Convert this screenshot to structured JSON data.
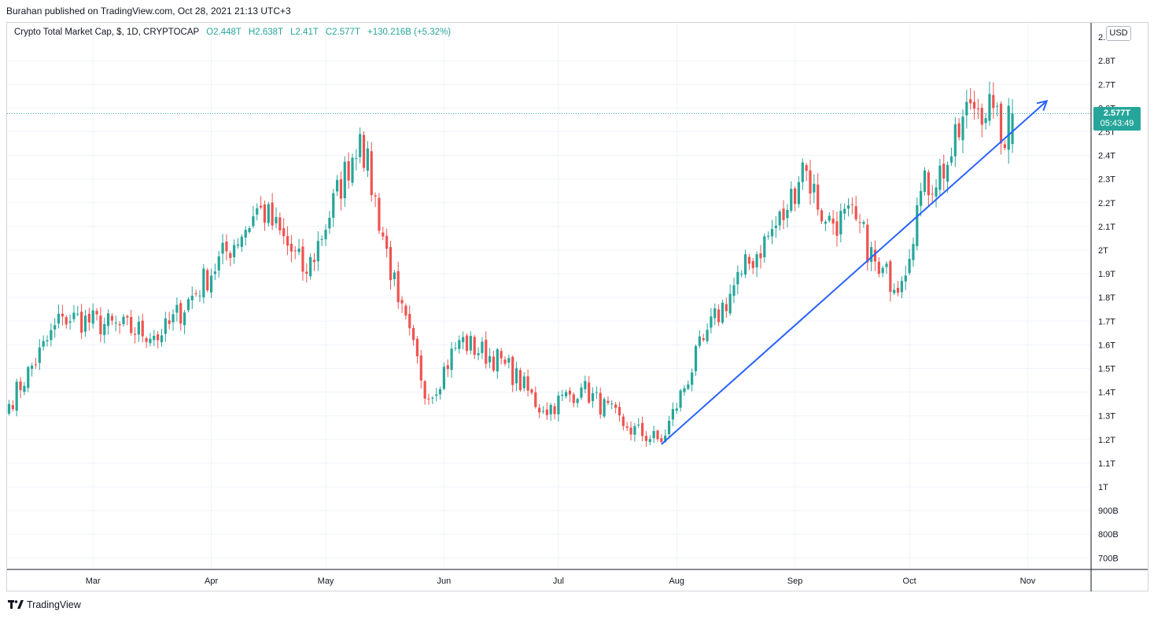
{
  "header": {
    "credit": "Burahan published on TradingView.com, Oct 28, 2021 21:13 UTC+3"
  },
  "legend": {
    "symbol": "Crypto Total Market Cap, $, 1D, CRYPTOCAP",
    "open": "O2.448T",
    "high": "H2.638T",
    "low": "L2.41T",
    "close": "C2.577T",
    "change": "+130.216B (+5.32%)"
  },
  "currency_badge": "USD",
  "last_price": {
    "value": "2.577T",
    "countdown": "05:43:49"
  },
  "footer": {
    "brand": "TradingView"
  },
  "colors": {
    "up": "#26a69a",
    "down": "#ef5350",
    "trendline": "#2962ff",
    "grid": "#f0f3fa"
  },
  "chart_data": {
    "type": "candlestick",
    "ylabel_unit": "USD",
    "y_ticks": [
      {
        "v": 2.8,
        "label": "2.8T"
      },
      {
        "v": 2.7,
        "label": "2.7T"
      },
      {
        "v": 2.6,
        "label": "2.6T"
      },
      {
        "v": 2.5,
        "label": "2.5T"
      },
      {
        "v": 2.4,
        "label": "2.4T"
      },
      {
        "v": 2.3,
        "label": "2.3T"
      },
      {
        "v": 2.2,
        "label": "2.2T"
      },
      {
        "v": 2.1,
        "label": "2.1T"
      },
      {
        "v": 2.0,
        "label": "2T"
      },
      {
        "v": 1.9,
        "label": "1.9T"
      },
      {
        "v": 1.8,
        "label": "1.8T"
      },
      {
        "v": 1.7,
        "label": "1.7T"
      },
      {
        "v": 1.6,
        "label": "1.6T"
      },
      {
        "v": 1.5,
        "label": "1.5T"
      },
      {
        "v": 1.4,
        "label": "1.4T"
      },
      {
        "v": 1.3,
        "label": "1.3T"
      },
      {
        "v": 1.2,
        "label": "1.2T"
      },
      {
        "v": 1.1,
        "label": "1.1T"
      },
      {
        "v": 1.0,
        "label": "1T"
      },
      {
        "v": 0.9,
        "label": "900B"
      },
      {
        "v": 0.8,
        "label": "800B"
      },
      {
        "v": 0.7,
        "label": "700B"
      }
    ],
    "top_tick_label": "2.",
    "x_ticks": [
      {
        "d": 22,
        "label": "Mar"
      },
      {
        "d": 53,
        "label": "Apr"
      },
      {
        "d": 83,
        "label": "May"
      },
      {
        "d": 114,
        "label": "Jun"
      },
      {
        "d": 144,
        "label": "Jul"
      },
      {
        "d": 175,
        "label": "Aug"
      },
      {
        "d": 206,
        "label": "Sep"
      },
      {
        "d": 236,
        "label": "Oct"
      },
      {
        "d": 267,
        "label": "Nov"
      }
    ],
    "x_note": "d = day index counted from Feb 7, 2021",
    "key_points": [
      {
        "d": 0,
        "close": 1.35
      },
      {
        "d": 14,
        "close": 1.72
      },
      {
        "d": 40,
        "close": 1.64
      },
      {
        "d": 66,
        "close": 2.18
      },
      {
        "d": 78,
        "close": 1.9
      },
      {
        "d": 92,
        "close": 2.49
      },
      {
        "d": 102,
        "close": 1.78
      },
      {
        "d": 110,
        "close": 1.37
      },
      {
        "d": 118,
        "close": 1.62
      },
      {
        "d": 130,
        "close": 1.52
      },
      {
        "d": 140,
        "close": 1.32
      },
      {
        "d": 150,
        "close": 1.42
      },
      {
        "d": 162,
        "close": 1.25
      },
      {
        "d": 171,
        "close": 1.19
      },
      {
        "d": 182,
        "close": 1.62
      },
      {
        "d": 192,
        "close": 1.9
      },
      {
        "d": 204,
        "close": 2.17
      },
      {
        "d": 208,
        "close": 2.37
      },
      {
        "d": 214,
        "close": 2.12
      },
      {
        "d": 222,
        "close": 2.13
      },
      {
        "d": 228,
        "close": 1.9
      },
      {
        "d": 234,
        "close": 1.87
      },
      {
        "d": 239,
        "close": 2.25
      },
      {
        "d": 246,
        "close": 2.36
      },
      {
        "d": 252,
        "close": 2.62
      },
      {
        "d": 258,
        "close": 2.6
      },
      {
        "d": 260,
        "close": 2.45
      },
      {
        "d": 263,
        "close": 2.577
      }
    ],
    "last_candle": {
      "open": 2.448,
      "high": 2.638,
      "low": 2.41,
      "close": 2.577
    },
    "trendline": {
      "from": {
        "d": 171,
        "v": 1.18
      },
      "to": {
        "d": 272,
        "v": 2.63
      }
    }
  }
}
